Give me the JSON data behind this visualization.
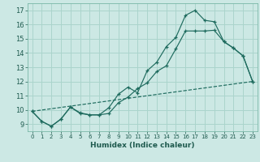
{
  "bg_color": "#cce8e4",
  "grid_color": "#aad4cc",
  "line_color": "#1e6b5e",
  "xlabel": "Humidex (Indice chaleur)",
  "xlim": [
    -0.5,
    23.5
  ],
  "ylim": [
    8.5,
    17.5
  ],
  "yticks": [
    9,
    10,
    11,
    12,
    13,
    14,
    15,
    16,
    17
  ],
  "xticks": [
    0,
    1,
    2,
    3,
    4,
    5,
    6,
    7,
    8,
    9,
    10,
    11,
    12,
    13,
    14,
    15,
    16,
    17,
    18,
    19,
    20,
    21,
    22,
    23
  ],
  "line1_x": [
    0,
    1,
    2,
    3,
    4,
    5,
    6,
    7,
    8,
    9,
    10,
    11,
    12,
    13,
    14,
    15,
    16,
    17,
    18,
    19,
    20,
    21,
    22,
    23
  ],
  "line1_y": [
    9.9,
    9.2,
    8.85,
    9.35,
    10.2,
    9.8,
    9.65,
    9.65,
    10.15,
    11.1,
    11.6,
    11.2,
    12.75,
    13.35,
    14.45,
    15.1,
    16.65,
    17.0,
    16.3,
    16.2,
    14.8,
    14.35,
    13.8,
    12.0
  ],
  "line2_x": [
    0,
    1,
    2,
    3,
    4,
    5,
    6,
    7,
    8,
    9,
    10,
    11,
    12,
    13,
    14,
    15,
    16,
    17,
    18,
    19,
    20,
    21,
    22,
    23
  ],
  "line2_y": [
    9.9,
    9.2,
    8.85,
    9.35,
    10.2,
    9.75,
    9.65,
    9.65,
    9.75,
    10.5,
    10.9,
    11.5,
    11.9,
    12.7,
    13.1,
    14.3,
    15.55,
    15.55,
    15.55,
    15.6,
    14.8,
    14.35,
    13.8,
    12.0
  ],
  "line3_x": [
    0,
    23
  ],
  "line3_y": [
    9.9,
    12.0
  ],
  "tick_fontsize": 5.5,
  "xlabel_fontsize": 6.5
}
